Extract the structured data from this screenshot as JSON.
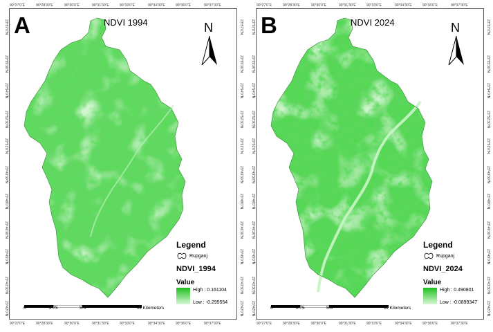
{
  "panels": [
    {
      "letter": "A",
      "title": "NDVI 1994",
      "north_label": "N",
      "lon_ticks": [
        "90°27'0\"E",
        "90°28'30\"E",
        "90°30'0\"E",
        "90°31'30\"E",
        "90°33'0\"E",
        "90°34'30\"E",
        "90°36'0\"E",
        "90°37'30\"E"
      ],
      "lat_ticks": [
        "23°57'0\"N",
        "23°55'30\"N",
        "23°54'0\"N",
        "23°52'30\"N",
        "23°51'0\"N",
        "23°49'30\"N",
        "23°48'0\"N",
        "23°46'30\"N",
        "23°45'0\"N",
        "23°43'30\"N",
        "23°42'0\"N"
      ],
      "legend": {
        "title": "Legend",
        "boundary_label": "Rupganj",
        "layer_name": "NDVI_1994",
        "value_label": "Value",
        "high_label": "High : 0.161104",
        "low_label": "Low : -0.295554"
      },
      "scale": {
        "labels": [
          "0",
          "2.75",
          "5.5",
          "11 Kilometers"
        ]
      },
      "colors": {
        "high": "#1fbf1f",
        "low": "#d8f7d6",
        "base": "#62d862",
        "river": "#b9efb6"
      }
    },
    {
      "letter": "B",
      "title": "NDVI 2024",
      "north_label": "N",
      "lon_ticks": [
        "90°27'0\"E",
        "90°28'30\"E",
        "90°30'0\"E",
        "90°31'30\"E",
        "90°33'0\"E",
        "90°34'30\"E",
        "90°36'0\"E",
        "90°37'30\"E"
      ],
      "lat_ticks": [
        "23°57'0\"N",
        "23°55'30\"N",
        "23°54'0\"N",
        "23°52'30\"N",
        "23°51'0\"N",
        "23°49'30\"N",
        "23°48'0\"N",
        "23°46'30\"N",
        "23°45'0\"N",
        "23°43'30\"N",
        "23°42'0\"N"
      ],
      "legend": {
        "title": "Legend",
        "boundary_label": "Rupganj",
        "layer_name": "NDVI_2024",
        "value_label": "Value",
        "high_label": "High : 0.490801",
        "low_label": "Low : -0.0899347"
      },
      "scale": {
        "labels": [
          "0",
          "2.75",
          "5.5",
          "11 Kilometers"
        ]
      },
      "colors": {
        "high": "#1fbf1f",
        "low": "#d8f7d6",
        "base": "#5ad65a",
        "river": "#c6f3c3"
      }
    }
  ]
}
